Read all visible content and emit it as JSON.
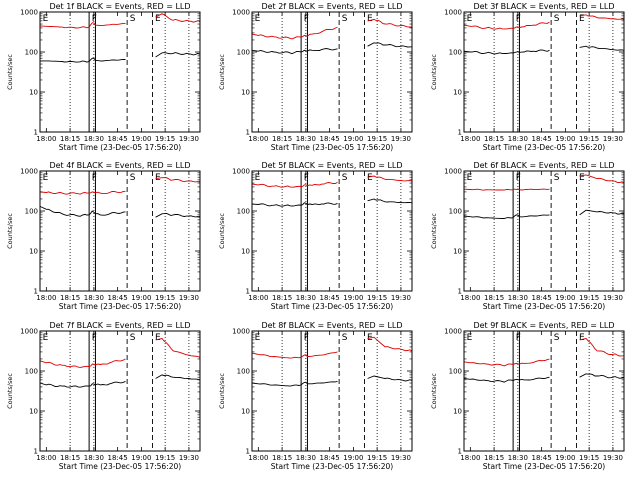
{
  "figure": {
    "x_tick_labels": [
      "18:00",
      "18:15",
      "18:30",
      "18:45",
      "19:00",
      "19:15",
      "19:30"
    ],
    "y_tick_labels": [
      "1000",
      "100",
      "10",
      "1"
    ],
    "y_axis_label": "Counts/sec",
    "x_axis_label": "Start Time (23-Dec-05 17:56:20)",
    "event_markers": [
      "E",
      "F",
      "S",
      "E"
    ]
  },
  "colors": {
    "events": "#000000",
    "lld": "#dd0000",
    "axes": "#000000"
  },
  "chart_data": [
    {
      "type": "line",
      "title": "Det 1f BLACK = Events, RED = LLD",
      "xlabel": "Start Time (23-Dec-05 17:56:20)",
      "ylabel": "Counts/sec",
      "y_scale": "log",
      "ylim": [
        1,
        1000
      ],
      "xlim": [
        "17:56",
        "19:37"
      ],
      "x": [
        "17:56",
        "18:00",
        "18:10",
        "18:20",
        "18:27",
        "18:29",
        "18:31",
        "18:34",
        "18:40",
        "18:50",
        "18:52",
        "18:54",
        "19:05",
        "19:08",
        "19:09",
        "19:13",
        "19:20",
        "19:30",
        "19:37"
      ],
      "series": [
        {
          "name": "BLACK = Events",
          "color": "#000000",
          "values": [
            60,
            60,
            58,
            56,
            58,
            70,
            62,
            60,
            62,
            65,
            null,
            null,
            null,
            null,
            75,
            95,
            92,
            90,
            88
          ]
        },
        {
          "name": "RED = LLD",
          "color": "#dd0000",
          "values": [
            450,
            440,
            420,
            400,
            420,
            540,
            470,
            460,
            480,
            520,
            null,
            null,
            null,
            null,
            750,
            900,
            620,
            600,
            580
          ]
        }
      ],
      "verticals": [
        {
          "x": "18:27",
          "style": "solid"
        },
        {
          "x": "18:31",
          "style": "solid"
        },
        {
          "x": "18:51",
          "style": "dashed"
        },
        {
          "x": "19:07",
          "style": "dashed"
        }
      ],
      "dotted_verticals": [
        "18:15",
        "18:30",
        "19:15",
        "19:30"
      ]
    },
    {
      "type": "line",
      "title": "Det 2f BLACK = Events, RED = LLD",
      "xlabel": "Start Time (23-Dec-05 17:56:20)",
      "ylabel": "Counts/sec",
      "y_scale": "log",
      "ylim": [
        1,
        1000
      ],
      "xlim": [
        "17:56",
        "19:37"
      ],
      "x": [
        "17:56",
        "18:00",
        "18:10",
        "18:20",
        "18:27",
        "18:29",
        "18:31",
        "18:34",
        "18:40",
        "18:50",
        "18:52",
        "18:54",
        "19:05",
        "19:08",
        "19:09",
        "19:13",
        "19:20",
        "19:30",
        "19:37"
      ],
      "series": [
        {
          "name": "BLACK = Events",
          "color": "#000000",
          "values": [
            110,
            105,
            100,
            95,
            100,
            110,
            105,
            110,
            115,
            120,
            null,
            null,
            null,
            null,
            140,
            170,
            150,
            140,
            135
          ]
        },
        {
          "name": "RED = LLD",
          "color": "#dd0000",
          "values": [
            280,
            260,
            240,
            220,
            235,
            260,
            250,
            280,
            320,
            420,
            null,
            null,
            null,
            null,
            600,
            650,
            500,
            460,
            420
          ]
        }
      ],
      "verticals": [
        {
          "x": "18:27",
          "style": "solid"
        },
        {
          "x": "18:31",
          "style": "solid"
        },
        {
          "x": "18:51",
          "style": "dashed"
        },
        {
          "x": "19:07",
          "style": "dashed"
        }
      ],
      "dotted_verticals": [
        "18:15",
        "18:30",
        "19:15",
        "19:30"
      ]
    },
    {
      "type": "line",
      "title": "Det 3f BLACK = Events, RED = LLD",
      "xlabel": "Start Time (23-Dec-05 17:56:20)",
      "ylabel": "Counts/sec",
      "y_scale": "log",
      "ylim": [
        1,
        1000
      ],
      "xlim": [
        "17:56",
        "19:37"
      ],
      "x": [
        "17:56",
        "18:00",
        "18:10",
        "18:20",
        "18:27",
        "18:29",
        "18:31",
        "18:34",
        "18:40",
        "18:50",
        "18:52",
        "18:54",
        "19:05",
        "19:08",
        "19:09",
        "19:13",
        "19:20",
        "19:30",
        "19:37"
      ],
      "series": [
        {
          "name": "BLACK = Events",
          "color": "#000000",
          "values": [
            105,
            100,
            95,
            92,
            95,
            100,
            98,
            100,
            105,
            110,
            null,
            null,
            null,
            null,
            130,
            140,
            125,
            115,
            110
          ]
        },
        {
          "name": "RED = LLD",
          "color": "#dd0000",
          "values": [
            470,
            440,
            400,
            380,
            390,
            420,
            410,
            430,
            470,
            560,
            null,
            null,
            null,
            null,
            800,
            850,
            720,
            680,
            650
          ]
        }
      ],
      "verticals": [
        {
          "x": "18:27",
          "style": "solid"
        },
        {
          "x": "18:31",
          "style": "solid"
        },
        {
          "x": "18:51",
          "style": "dashed"
        },
        {
          "x": "19:07",
          "style": "dashed"
        }
      ],
      "dotted_verticals": [
        "18:15",
        "18:30",
        "19:15",
        "19:30"
      ]
    },
    {
      "type": "line",
      "title": "Det 4f BLACK = Events, RED = LLD",
      "xlabel": "Start Time (23-Dec-05 17:56:20)",
      "ylabel": "Counts/sec",
      "y_scale": "log",
      "ylim": [
        1,
        1000
      ],
      "xlim": [
        "17:56",
        "19:37"
      ],
      "x": [
        "17:56",
        "18:00",
        "18:10",
        "18:20",
        "18:27",
        "18:29",
        "18:31",
        "18:34",
        "18:40",
        "18:50",
        "18:52",
        "18:54",
        "19:05",
        "19:08",
        "19:09",
        "19:13",
        "19:20",
        "19:30",
        "19:37"
      ],
      "series": [
        {
          "name": "BLACK = Events",
          "color": "#000000",
          "values": [
            130,
            110,
            85,
            75,
            80,
            100,
            85,
            80,
            85,
            95,
            null,
            null,
            null,
            null,
            70,
            85,
            80,
            75,
            72
          ]
        },
        {
          "name": "RED = LLD",
          "color": "#dd0000",
          "values": [
            300,
            290,
            280,
            270,
            280,
            300,
            285,
            280,
            290,
            310,
            null,
            null,
            null,
            null,
            650,
            680,
            600,
            560,
            540
          ]
        }
      ],
      "verticals": [
        {
          "x": "18:27",
          "style": "solid"
        },
        {
          "x": "18:31",
          "style": "solid"
        },
        {
          "x": "18:51",
          "style": "dashed"
        },
        {
          "x": "19:07",
          "style": "dashed"
        }
      ],
      "dotted_verticals": [
        "18:15",
        "18:30",
        "19:15",
        "19:30"
      ]
    },
    {
      "type": "line",
      "title": "Det 5f BLACK = Events, RED = LLD",
      "xlabel": "Start Time (23-Dec-05 17:56:20)",
      "ylabel": "Counts/sec",
      "y_scale": "log",
      "ylim": [
        1,
        1000
      ],
      "xlim": [
        "17:56",
        "19:37"
      ],
      "x": [
        "17:56",
        "18:00",
        "18:10",
        "18:20",
        "18:27",
        "18:29",
        "18:31",
        "18:34",
        "18:40",
        "18:50",
        "18:52",
        "18:54",
        "19:05",
        "19:08",
        "19:09",
        "19:13",
        "19:20",
        "19:30",
        "19:37"
      ],
      "series": [
        {
          "name": "BLACK = Events",
          "color": "#000000",
          "values": [
            150,
            145,
            140,
            135,
            140,
            160,
            145,
            145,
            150,
            155,
            null,
            null,
            null,
            null,
            180,
            200,
            170,
            165,
            160
          ]
        },
        {
          "name": "RED = LLD",
          "color": "#dd0000",
          "values": [
            470,
            450,
            420,
            400,
            410,
            450,
            430,
            440,
            470,
            520,
            null,
            null,
            null,
            null,
            700,
            750,
            620,
            580,
            560
          ]
        }
      ],
      "verticals": [
        {
          "x": "18:27",
          "style": "solid"
        },
        {
          "x": "18:31",
          "style": "solid"
        },
        {
          "x": "18:51",
          "style": "dashed"
        },
        {
          "x": "19:07",
          "style": "dashed"
        }
      ],
      "dotted_verticals": [
        "18:15",
        "18:30",
        "19:15",
        "19:30"
      ]
    },
    {
      "type": "line",
      "title": "Det 6f BLACK = Events, RED = LLD",
      "xlabel": "Start Time (23-Dec-05 17:56:20)",
      "ylabel": "Counts/sec",
      "y_scale": "log",
      "ylim": [
        1,
        1000
      ],
      "xlim": [
        "17:56",
        "19:37"
      ],
      "x": [
        "17:56",
        "18:00",
        "18:10",
        "18:20",
        "18:27",
        "18:29",
        "18:31",
        "18:34",
        "18:40",
        "18:50",
        "18:52",
        "18:54",
        "19:05",
        "19:08",
        "19:09",
        "19:13",
        "19:20",
        "19:30",
        "19:37"
      ],
      "series": [
        {
          "name": "BLACK = Events",
          "color": "#000000",
          "values": [
            75,
            72,
            68,
            65,
            68,
            80,
            72,
            72,
            75,
            80,
            null,
            null,
            null,
            null,
            80,
            105,
            95,
            90,
            85
          ]
        },
        {
          "name": "RED = LLD",
          "color": "#dd0000",
          "values": [
            350,
            345,
            340,
            335,
            340,
            345,
            340,
            340,
            345,
            350,
            null,
            null,
            null,
            null,
            750,
            800,
            650,
            560,
            520
          ]
        }
      ],
      "verticals": [
        {
          "x": "18:27",
          "style": "solid"
        },
        {
          "x": "18:31",
          "style": "solid"
        },
        {
          "x": "18:51",
          "style": "dashed"
        },
        {
          "x": "19:07",
          "style": "dashed"
        }
      ],
      "dotted_verticals": [
        "18:15",
        "18:30",
        "19:15",
        "19:30"
      ]
    },
    {
      "type": "line",
      "title": "Det 7f BLACK = Events, RED = LLD",
      "xlabel": "Start Time (23-Dec-05 17:56:20)",
      "ylabel": "Counts/sec",
      "y_scale": "log",
      "ylim": [
        1,
        1000
      ],
      "xlim": [
        "17:56",
        "19:37"
      ],
      "x": [
        "17:56",
        "18:00",
        "18:10",
        "18:20",
        "18:27",
        "18:29",
        "18:31",
        "18:34",
        "18:40",
        "18:50",
        "18:52",
        "18:54",
        "19:05",
        "19:08",
        "19:09",
        "19:13",
        "19:20",
        "19:30",
        "19:37"
      ],
      "series": [
        {
          "name": "BLACK = Events",
          "color": "#000000",
          "values": [
            50,
            45,
            42,
            40,
            42,
            48,
            45,
            45,
            48,
            55,
            null,
            null,
            null,
            null,
            65,
            80,
            70,
            65,
            60
          ]
        },
        {
          "name": "RED = LLD",
          "color": "#dd0000",
          "values": [
            180,
            160,
            140,
            125,
            130,
            150,
            140,
            145,
            160,
            200,
            null,
            null,
            null,
            null,
            600,
            650,
            320,
            250,
            220
          ]
        }
      ],
      "verticals": [
        {
          "x": "18:27",
          "style": "solid"
        },
        {
          "x": "18:31",
          "style": "solid"
        },
        {
          "x": "18:51",
          "style": "dashed"
        },
        {
          "x": "19:07",
          "style": "dashed"
        }
      ],
      "dotted_verticals": [
        "18:15",
        "18:30",
        "19:15",
        "19:30"
      ]
    },
    {
      "type": "line",
      "title": "Det 8f BLACK = Events, RED = LLD",
      "xlabel": "Start Time (23-Dec-05 17:56:20)",
      "ylabel": "Counts/sec",
      "y_scale": "log",
      "ylim": [
        1,
        1000
      ],
      "xlim": [
        "17:56",
        "19:37"
      ],
      "x": [
        "17:56",
        "18:00",
        "18:10",
        "18:20",
        "18:27",
        "18:29",
        "18:31",
        "18:34",
        "18:40",
        "18:50",
        "18:52",
        "18:54",
        "19:05",
        "19:08",
        "19:09",
        "19:13",
        "19:20",
        "19:30",
        "19:37"
      ],
      "series": [
        {
          "name": "BLACK = Events",
          "color": "#000000",
          "values": [
            50,
            48,
            45,
            42,
            45,
            52,
            48,
            48,
            50,
            55,
            null,
            null,
            null,
            null,
            65,
            75,
            65,
            60,
            58
          ]
        },
        {
          "name": "RED = LLD",
          "color": "#dd0000",
          "values": [
            280,
            260,
            230,
            210,
            220,
            250,
            230,
            235,
            250,
            300,
            null,
            null,
            null,
            null,
            650,
            700,
            400,
            350,
            320
          ]
        }
      ],
      "verticals": [
        {
          "x": "18:27",
          "style": "solid"
        },
        {
          "x": "18:31",
          "style": "solid"
        },
        {
          "x": "18:51",
          "style": "dashed"
        },
        {
          "x": "19:07",
          "style": "dashed"
        }
      ],
      "dotted_verticals": [
        "18:15",
        "18:30",
        "19:15",
        "19:30"
      ]
    },
    {
      "type": "line",
      "title": "Det 9f BLACK = Events, RED = LLD",
      "xlabel": "Start Time (23-Dec-05 17:56:20)",
      "ylabel": "Counts/sec",
      "y_scale": "log",
      "ylim": [
        1,
        1000
      ],
      "xlim": [
        "17:56",
        "19:37"
      ],
      "x": [
        "17:56",
        "18:00",
        "18:10",
        "18:20",
        "18:27",
        "18:29",
        "18:31",
        "18:34",
        "18:40",
        "18:50",
        "18:52",
        "18:54",
        "19:05",
        "19:08",
        "19:09",
        "19:13",
        "19:20",
        "19:30",
        "19:37"
      ],
      "series": [
        {
          "name": "BLACK = Events",
          "color": "#000000",
          "values": [
            65,
            62,
            58,
            55,
            58,
            62,
            60,
            60,
            62,
            70,
            null,
            null,
            null,
            null,
            70,
            85,
            75,
            70,
            68
          ]
        },
        {
          "name": "RED = LLD",
          "color": "#dd0000",
          "values": [
            170,
            160,
            150,
            140,
            145,
            155,
            150,
            155,
            165,
            200,
            null,
            null,
            null,
            null,
            600,
            650,
            320,
            260,
            240
          ]
        }
      ],
      "verticals": [
        {
          "x": "18:27",
          "style": "solid"
        },
        {
          "x": "18:31",
          "style": "solid"
        },
        {
          "x": "18:51",
          "style": "dashed"
        },
        {
          "x": "19:07",
          "style": "dashed"
        }
      ],
      "dotted_verticals": [
        "18:15",
        "18:30",
        "19:15",
        "19:30"
      ]
    }
  ]
}
